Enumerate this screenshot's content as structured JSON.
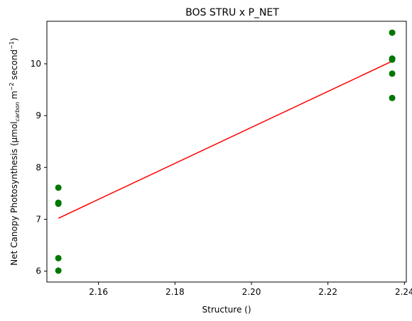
{
  "chart_data": {
    "type": "scatter",
    "title": "BOS STRU x P_NET",
    "xlabel": "Structure ()",
    "ylabel": {
      "prefix": "Net Canopy Photosynthesis (µmol",
      "sub": "carbon",
      "mid": " m",
      "sup1": "−2",
      "mid2": " second",
      "sup2": "−1",
      "suffix": ")"
    },
    "xlim": [
      2.1465,
      2.2405
    ],
    "ylim": [
      5.79,
      10.82
    ],
    "xticks": [
      2.16,
      2.18,
      2.2,
      2.22,
      2.24
    ],
    "xtick_labels": [
      "2.16",
      "2.18",
      "2.20",
      "2.22",
      "2.24"
    ],
    "yticks": [
      6,
      7,
      8,
      9,
      10
    ],
    "ytick_labels": [
      "6",
      "7",
      "8",
      "9",
      "10"
    ],
    "grid": false,
    "series": [
      {
        "name": "observations",
        "kind": "scatter",
        "color": "#007700",
        "points": [
          [
            2.1495,
            7.61
          ],
          [
            2.1495,
            7.32
          ],
          [
            2.1495,
            7.3
          ],
          [
            2.1495,
            6.25
          ],
          [
            2.1495,
            6.01
          ],
          [
            2.2368,
            10.6
          ],
          [
            2.2368,
            10.1
          ],
          [
            2.2368,
            10.08
          ],
          [
            2.2368,
            9.81
          ],
          [
            2.2368,
            9.34
          ]
        ]
      },
      {
        "name": "fit",
        "kind": "line",
        "color": "#ff0000",
        "points": [
          [
            2.1495,
            7.02
          ],
          [
            2.2368,
            10.05
          ]
        ]
      }
    ]
  }
}
